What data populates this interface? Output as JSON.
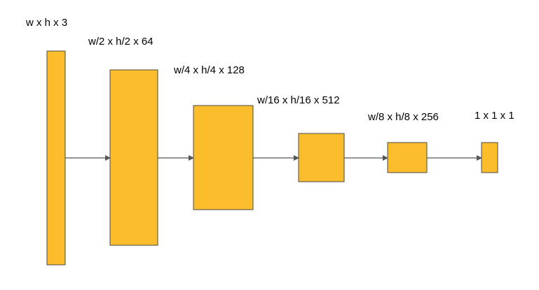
{
  "colors": {
    "block_fill": "#FBBD2C",
    "block_stroke": "#4A4A4A",
    "arrow": "#555555"
  },
  "layers": [
    {
      "label": "w x h x 3"
    },
    {
      "label": "w/2 x h/2 x 64"
    },
    {
      "label": "w/4 x h/4 x 128"
    },
    {
      "label": "w/16 x h/16 x 512"
    },
    {
      "label": "w/8 x h/8 x 256"
    },
    {
      "label": "1 x 1 x 1"
    }
  ]
}
